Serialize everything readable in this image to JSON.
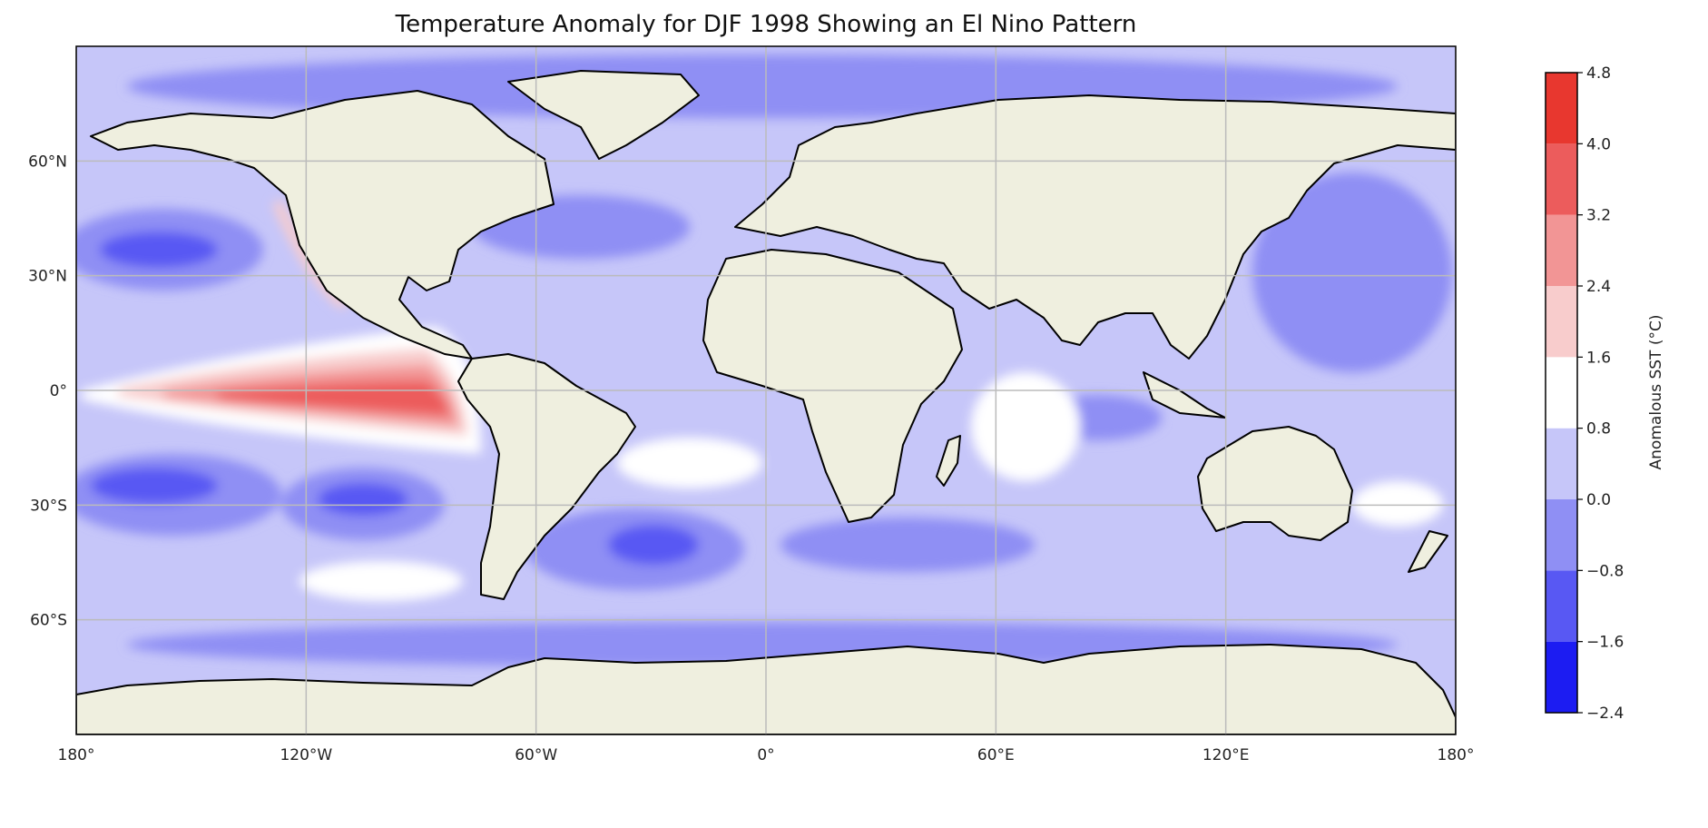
{
  "title": "Temperature Anomaly for DJF 1998 Showing an El Nino Pattern",
  "map": {
    "projection": "PlateCarree",
    "extent": {
      "lon": [
        -180,
        180
      ],
      "lat": [
        -90,
        90
      ]
    },
    "gridlines": true,
    "ocean_field": "sea surface temperature anomaly (contour-filled)",
    "land_color": "#efefdf",
    "coastline_color": "#000000",
    "lon_ticks": [
      {
        "value": -180,
        "label": "180°"
      },
      {
        "value": -120,
        "label": "120°W"
      },
      {
        "value": -60,
        "label": "60°W"
      },
      {
        "value": 0,
        "label": "0°"
      },
      {
        "value": 60,
        "label": "60°E"
      },
      {
        "value": 120,
        "label": "120°E"
      },
      {
        "value": 180,
        "label": "180°"
      }
    ],
    "lat_ticks": [
      {
        "value": 60,
        "label": "60°N"
      },
      {
        "value": 30,
        "label": "30°N"
      },
      {
        "value": 0,
        "label": "0°"
      },
      {
        "value": -30,
        "label": "30°S"
      },
      {
        "value": -60,
        "label": "60°S"
      }
    ]
  },
  "colorbar": {
    "label": "Anomalous SST (°C)",
    "levels": [
      -2.4,
      -1.6,
      -0.8,
      0.0,
      0.8,
      1.6,
      2.4,
      3.2,
      4.0,
      4.8
    ],
    "level_labels": [
      "−2.4",
      "−1.6",
      "−0.8",
      "0.0",
      "0.8",
      "1.6",
      "2.4",
      "3.2",
      "4.0",
      "4.8"
    ],
    "colors": [
      "#1c1cf2",
      "#5858f3",
      "#8f8ff4",
      "#c6c6f9",
      "#ffffff",
      "#f8cccc",
      "#f29595",
      "#ec5c5c",
      "#e8372f"
    ]
  }
}
